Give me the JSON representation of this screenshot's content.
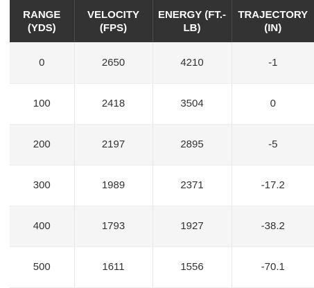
{
  "table": {
    "headers": [
      "RANGE (YDS)",
      "VELOCITY (FPS)",
      "ENERGY (FT.-LB)",
      "TRAJECTORY (IN)"
    ],
    "rows": [
      [
        "0",
        "2650",
        "4210",
        "-1"
      ],
      [
        "100",
        "2418",
        "3504",
        "0"
      ],
      [
        "200",
        "2197",
        "2895",
        "-5"
      ],
      [
        "300",
        "1989",
        "2371",
        "-17.2"
      ],
      [
        "400",
        "1793",
        "1927",
        "-38.2"
      ],
      [
        "500",
        "1611",
        "1556",
        "-70.1"
      ]
    ]
  },
  "colors": {
    "header_bg": "#333333",
    "header_text": "#ffffff",
    "row_odd_bg": "#f5f5f5",
    "row_even_bg": "#ffffff",
    "cell_text": "#333333"
  }
}
